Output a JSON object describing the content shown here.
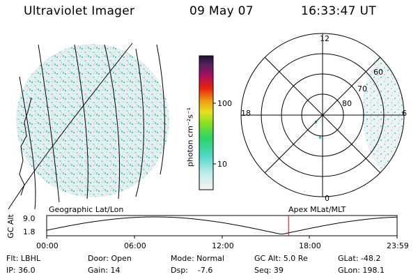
{
  "header": {
    "instrument": "Ultraviolet Imager",
    "date": "09 May 07",
    "time": "16:33:47 UT"
  },
  "colorbar": {
    "unit_label": "photon cm⁻²s⁻¹",
    "ticks": [
      "100",
      "10"
    ],
    "scale": "log"
  },
  "polar": {
    "mlt_labels": [
      "12",
      "18",
      "6",
      "0"
    ],
    "lat_labels": [
      "60",
      "70",
      "80"
    ]
  },
  "orbit": {
    "left_label": "Geographic Lat/Lon",
    "right_label": "Apex MLat/MLT",
    "axis_title": "GC Alt",
    "y_ticks": [
      "9.0",
      "1.8"
    ],
    "x_ticks": [
      "00:00",
      "06:00",
      "12:00",
      "18:00",
      "23:59"
    ],
    "marker_time": "16:34",
    "marker_color": "#e00000"
  },
  "status": {
    "flt": "Flt: LBHL",
    "door": "Door: Open",
    "mode": "Mode: Normal",
    "gc_alt": "GC Alt: 5.0 Re",
    "glat": "GLat: -48.2",
    "ip": "IP: 36.0",
    "gain": "Gain: 14",
    "dsp": "Dsp:    -7.6",
    "seq": "Seq: 39",
    "glon": "GLon: 198.1"
  }
}
